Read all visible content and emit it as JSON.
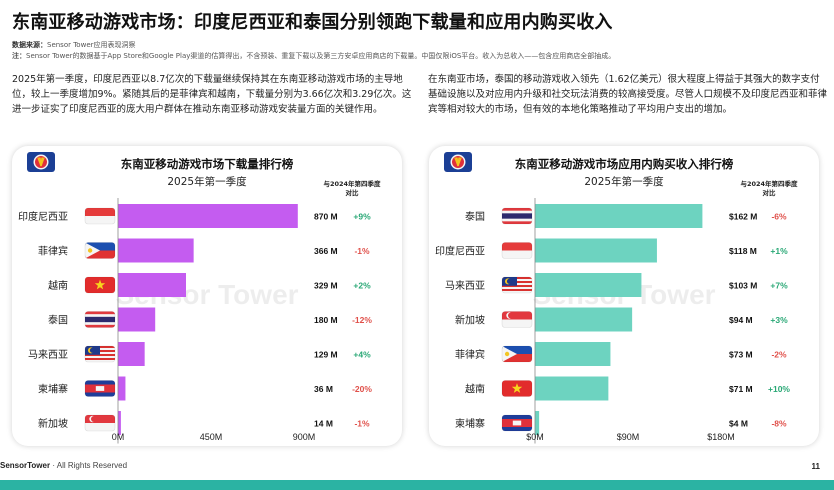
{
  "header": {
    "title": "东南亚移动游戏市场：印度尼西亚和泰国分别领跑下载量和应用内购买收入",
    "source_label": "数据来源：",
    "source_text": "Sensor Tower应用表现洞察",
    "note_label": "注：",
    "note_text": "Sensor Tower的数据基于App Store和Google Play渠道的估算得出，不含预装、重复下载以及第三方安卓应用商店的下载量。中国仅限iOS平台。收入为总收入——包含应用商店全部抽成。"
  },
  "paragraphs": {
    "left": "2025年第一季度，印度尼西亚以8.7亿次的下载量继续保持其在东南亚移动游戏市场的主导地位，较上一季度增加9%。紧随其后的是菲律宾和越南，下载量分别为3.66亿次和3.29亿次。这进一步证实了印度尼西亚的庞大用户群体在推动东南亚移动游戏安装量方面的关键作用。",
    "right": "在东南亚市场，泰国的移动游戏收入领先（1.62亿美元）很大程度上得益于其强大的数字支付基础设施以及对应用内升级和社交玩法消费的较高接受度。尽管人口规模不及印度尼西亚和菲律宾等相对较大的市场，但有效的本地化策略推动了平均用户支出的增加。"
  },
  "footer": {
    "brand": "SensorTower",
    "rights": " · All Rights Reserved",
    "page": "11"
  },
  "chart_data": [
    {
      "type": "bar",
      "orientation": "horizontal",
      "title": "东南亚移动游戏市场下载量排行榜",
      "subtitle": "2025年第一季度",
      "change_header": "与2024年第四季度对比",
      "color": "#c45cf0",
      "categories": [
        "印度尼西亚",
        "菲律宾",
        "越南",
        "泰国",
        "马来西亚",
        "柬埔寨",
        "新加坡"
      ],
      "values": [
        870,
        366,
        329,
        180,
        129,
        36,
        14
      ],
      "value_labels": [
        "870 M",
        "366 M",
        "329 M",
        "180 M",
        "129 M",
        "36 M",
        "14 M"
      ],
      "changes": [
        "+9%",
        "-1%",
        "+2%",
        "-12%",
        "+4%",
        "-20%",
        "-1%"
      ],
      "xlim": [
        0,
        900
      ],
      "x_ticks": [
        "0M",
        "450M",
        "900M"
      ],
      "watermark": "Sensor Tower"
    },
    {
      "type": "bar",
      "orientation": "horizontal",
      "title": "东南亚移动游戏市场应用内购买收入排行榜",
      "subtitle": "2025年第一季度",
      "change_header": "与2024年第四季度对比",
      "color": "#6dd3c0",
      "categories": [
        "泰国",
        "印度尼西亚",
        "马来西亚",
        "新加坡",
        "菲律宾",
        "越南",
        "柬埔寨"
      ],
      "values": [
        162,
        118,
        103,
        94,
        73,
        71,
        4
      ],
      "value_labels": [
        "$162 M",
        "$118 M",
        "$103 M",
        "$94 M",
        "$73 M",
        "$71 M",
        "$4 M"
      ],
      "changes": [
        "-6%",
        "+1%",
        "+7%",
        "+3%",
        "-2%",
        "+10%",
        "-8%"
      ],
      "xlim": [
        0,
        180
      ],
      "x_ticks": [
        "$0M",
        "$90M",
        "$180M"
      ],
      "watermark": "Sensor Tower"
    }
  ],
  "colors": {
    "positive": "#2aa876",
    "negative": "#e0504a",
    "teal_footer": "#2bb3a3",
    "asean_blue": "#1b3f95"
  },
  "flags": [
    "indonesia-flag",
    "philippines-flag",
    "vietnam-flag",
    "thailand-flag",
    "malaysia-flag",
    "cambodia-flag",
    "singapore-flag"
  ]
}
